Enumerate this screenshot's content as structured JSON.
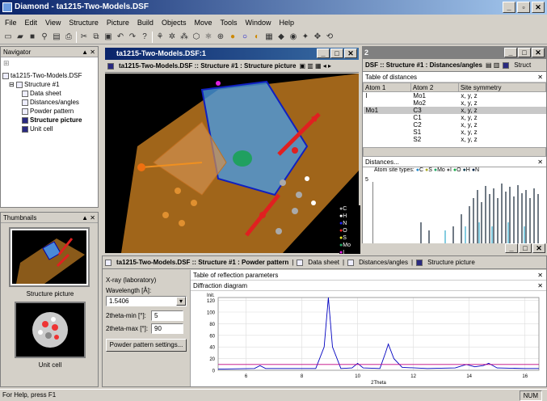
{
  "window": {
    "title": "Diamond - ta1215-Two-Models.DSF"
  },
  "menu": [
    "File",
    "Edit",
    "View",
    "Structure",
    "Picture",
    "Build",
    "Objects",
    "Move",
    "Tools",
    "Window",
    "Help"
  ],
  "navigator": {
    "title": "Navigator",
    "file": "ta1215-Two-Models.DSF",
    "structure": "Structure #1",
    "items": [
      "Data sheet",
      "Distances/angles",
      "Powder pattern",
      "Structure picture",
      "Unit cell"
    ]
  },
  "thumbnails": {
    "title": "Thumbnails",
    "captions": [
      "Structure picture",
      "Unit cell"
    ]
  },
  "picture_window": {
    "title": "ta1215-Two-Models.DSF:1",
    "tab": "ta1215-Two-Models.DSF :: Structure #1 : Structure picture",
    "legend": [
      "C",
      "H",
      "N",
      "O",
      "S",
      "Mo",
      "I"
    ]
  },
  "dist_window": {
    "title": "2",
    "tab": "DSF :: Structure #1 : Distances/angles",
    "tab2": "Struct",
    "table_title": "Table of distances",
    "headers": [
      "Atom 1",
      "Atom 2",
      "Site symmetry"
    ],
    "rows": [
      [
        "I",
        "Mo1",
        "x, y, z"
      ],
      [
        "",
        "Mo2",
        "x, y, z"
      ],
      [
        "Mo1",
        "C3",
        "x, y, z"
      ],
      [
        "",
        "C1",
        "x, y, z"
      ],
      [
        "",
        "C2",
        "x, y, z"
      ],
      [
        "",
        "S1",
        "x, y, z"
      ],
      [
        "",
        "S2",
        "x, y, z"
      ]
    ],
    "hist_title": "Distances...",
    "hist_legend_label": "Atom site types:",
    "hist_legend": [
      "C",
      "S",
      "Mo",
      "I",
      "O",
      "H",
      "N"
    ],
    "hist_y": "5"
  },
  "powder_window": {
    "tab": "ta1215-Two-Models.DSF :: Structure #1 : Powder pattern",
    "tab_ds": "Data sheet",
    "tab_da": "Distances/angles",
    "tab_sp": "Structure picture",
    "xray_label": "X-ray (laboratory)",
    "wavelength_label": "Wavelength [Å]:",
    "wavelength": "1.5406",
    "tmin_label": "2theta-min [°]:",
    "tmin": "5",
    "tmax_label": "2theta-max [°]:",
    "tmax": "90",
    "settings_btn": "Powder pattern settings...",
    "reflection_title": "Table of reflection parameters",
    "diagram_title": "Diffraction diagram"
  },
  "chart_data": {
    "type": "line",
    "ylabel": "Init.",
    "xlabel": "2Theta",
    "xlim": [
      5,
      16.5
    ],
    "ylim": [
      0,
      125
    ],
    "xticks": [
      6,
      8,
      10,
      12,
      14,
      16
    ],
    "yticks": [
      0,
      20,
      40,
      60,
      80,
      100,
      120
    ],
    "grid": true,
    "series": [
      {
        "values": [
          [
            5,
            2
          ],
          [
            6.3,
            3
          ],
          [
            6.5,
            8
          ],
          [
            6.7,
            3
          ],
          [
            8.5,
            3
          ],
          [
            8.8,
            40
          ],
          [
            8.95,
            125
          ],
          [
            9.1,
            40
          ],
          [
            9.4,
            3
          ],
          [
            9.8,
            4
          ],
          [
            10.0,
            12
          ],
          [
            10.2,
            4
          ],
          [
            10.8,
            3
          ],
          [
            11.0,
            30
          ],
          [
            11.1,
            45
          ],
          [
            11.3,
            20
          ],
          [
            11.6,
            5
          ],
          [
            12.5,
            3
          ],
          [
            13.5,
            4
          ],
          [
            13.9,
            10
          ],
          [
            14.2,
            6
          ],
          [
            14.5,
            8
          ],
          [
            14.7,
            12
          ],
          [
            15.0,
            4
          ],
          [
            16,
            3
          ],
          [
            16.5,
            3
          ]
        ]
      },
      {
        "values": [
          [
            5,
            10
          ],
          [
            16.5,
            10
          ]
        ]
      }
    ]
  },
  "status": {
    "left": "For Help, press F1",
    "right": "NUM"
  }
}
